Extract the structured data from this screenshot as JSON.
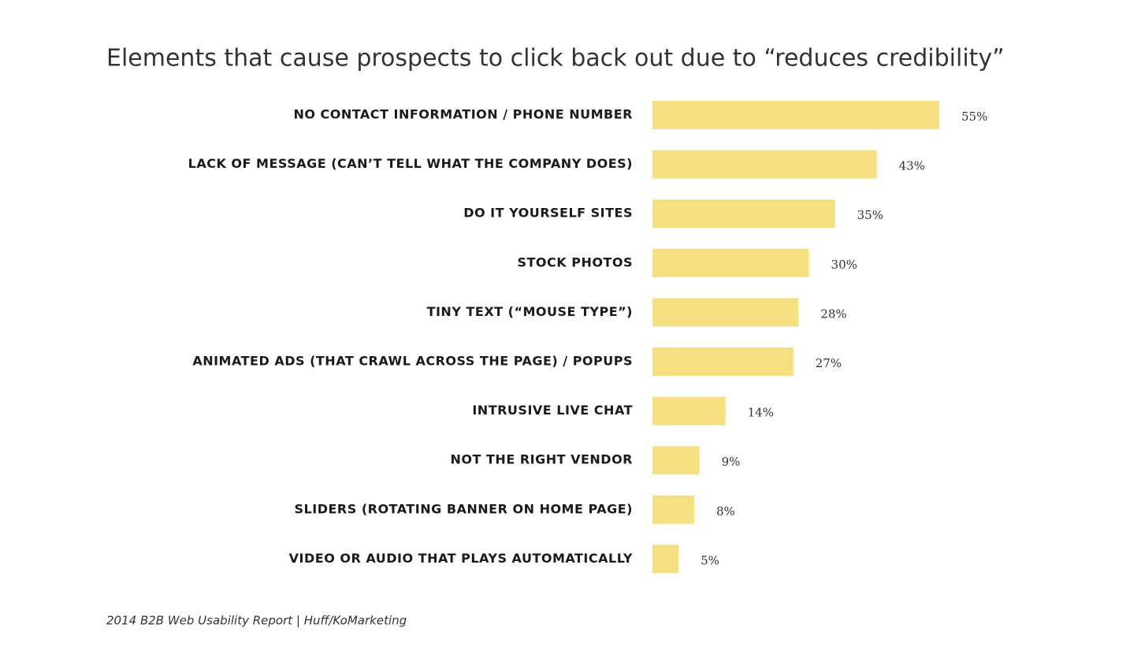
{
  "chart_data": {
    "type": "bar",
    "orientation": "horizontal",
    "title": "Elements that cause prospects to click back out due to “reduces credibility”",
    "source": "2014 B2B Web Usability Report | Huff/KoMarketing",
    "categories": [
      "NO CONTACT INFORMATION / PHONE NUMBER",
      "LACK OF MESSAGE (CAN’T TELL WHAT THE COMPANY DOES)",
      "DO IT YOURSELF SITES",
      "STOCK PHOTOS",
      "TINY TEXT (“MOUSE TYPE”)",
      "ANIMATED ADS (THAT CRAWL ACROSS THE PAGE) / POPUPS",
      "INTRUSIVE LIVE CHAT",
      "NOT THE RIGHT VENDOR",
      "SLIDERS (ROTATING BANNER ON HOME PAGE)",
      "VIDEO OR AUDIO THAT PLAYS AUTOMATICALLY"
    ],
    "values": [
      55,
      43,
      35,
      30,
      28,
      27,
      14,
      9,
      8,
      5
    ],
    "value_labels": [
      "55%",
      "43%",
      "35%",
      "30%",
      "28%",
      "27%",
      "14%",
      "9%",
      "8%",
      "5%"
    ],
    "color": "#f6df82"
  }
}
